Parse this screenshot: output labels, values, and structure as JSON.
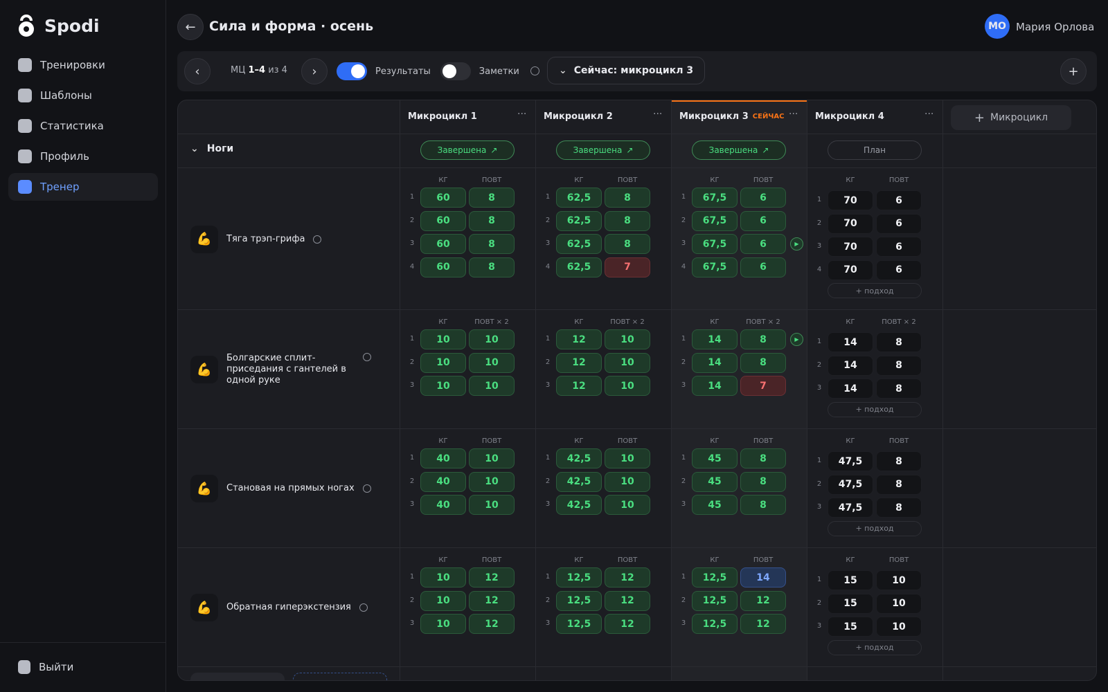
{
  "sidebar": {
    "brand": "Spodi",
    "nav": [
      "Тренировки",
      "Шаблоны",
      "Статистика",
      "Профиль",
      "Тренер"
    ],
    "logout": "Выйти"
  },
  "header": {
    "title": "Сила и форма · осень",
    "user_initials": "МО",
    "user_name": "Мария Орлова"
  },
  "toolbar": {
    "range_prefix": "МЦ",
    "range": "1–4",
    "range_suffix": "из 4",
    "toggles": [
      {
        "label": "Результаты",
        "on": true
      },
      {
        "label": "Заметки",
        "on": false
      }
    ],
    "current": "Сейчас: микроцикл 3"
  },
  "table": {
    "add_column": "Микроцикл",
    "group": "Ноги",
    "add_set": "+ подход",
    "columns": [
      {
        "name": "Микроцикл 1",
        "status": "Завершена",
        "planned": false
      },
      {
        "name": "Микроцикл 2",
        "status": "Завершена",
        "planned": false
      },
      {
        "name": "Микроцикл 3",
        "badge": "СЕЙЧАС",
        "status": "Завершена",
        "planned": false
      },
      {
        "name": "Микроцикл 4",
        "status": "План",
        "planned": true
      }
    ],
    "exercises": [
      {
        "name": "Тяга трэп-грифа",
        "col_kg": "КГ",
        "col_reps": "ПОВТ",
        "cycles": [
          {
            "sets": [
              [
                "60",
                "8"
              ],
              [
                "60",
                "8"
              ],
              [
                "60",
                "8"
              ],
              [
                "60",
                "8"
              ]
            ]
          },
          {
            "sets": [
              [
                "62,5",
                "8"
              ],
              [
                "62,5",
                "8"
              ],
              [
                "62,5",
                "8"
              ],
              [
                "62,5",
                "7"
              ]
            ],
            "missed": [
              [
                3,
                1
              ]
            ]
          },
          {
            "sets": [
              [
                "67,5",
                "6"
              ],
              [
                "67,5",
                "6"
              ],
              [
                "67,5",
                "6"
              ],
              [
                "67,5",
                "6"
              ]
            ],
            "active_set": 2
          },
          {
            "sets": [
              [
                "70",
                "6"
              ],
              [
                "70",
                "6"
              ],
              [
                "70",
                "6"
              ],
              [
                "70",
                "6"
              ]
            ]
          }
        ]
      },
      {
        "name": "Болгарские сплит-приседания с гантелей в одной руке",
        "col_kg": "КГ",
        "col_reps": "ПОВТ × 2",
        "cycles": [
          {
            "sets": [
              [
                "10",
                "10"
              ],
              [
                "10",
                "10"
              ],
              [
                "10",
                "10"
              ]
            ]
          },
          {
            "sets": [
              [
                "12",
                "10"
              ],
              [
                "12",
                "10"
              ],
              [
                "12",
                "10"
              ]
            ]
          },
          {
            "sets": [
              [
                "14",
                "8"
              ],
              [
                "14",
                "8"
              ],
              [
                "14",
                "7"
              ]
            ],
            "missed": [
              [
                2,
                1
              ]
            ],
            "active_set": 0
          },
          {
            "sets": [
              [
                "14",
                "8"
              ],
              [
                "14",
                "8"
              ],
              [
                "14",
                "8"
              ]
            ]
          }
        ]
      },
      {
        "name": "Становая на прямых ногах",
        "col_kg": "КГ",
        "col_reps": "ПОВТ",
        "cycles": [
          {
            "sets": [
              [
                "40",
                "10"
              ],
              [
                "40",
                "10"
              ],
              [
                "40",
                "10"
              ]
            ]
          },
          {
            "sets": [
              [
                "42,5",
                "10"
              ],
              [
                "42,5",
                "10"
              ],
              [
                "42,5",
                "10"
              ]
            ]
          },
          {
            "sets": [
              [
                "45",
                "8"
              ],
              [
                "45",
                "8"
              ],
              [
                "45",
                "8"
              ]
            ]
          },
          {
            "sets": [
              [
                "47,5",
                "8"
              ],
              [
                "47,5",
                "8"
              ],
              [
                "47,5",
                "8"
              ]
            ]
          }
        ]
      },
      {
        "name": "Обратная гиперэкстензия",
        "col_kg": "КГ",
        "col_reps": "ПОВТ",
        "cycles": [
          {
            "sets": [
              [
                "10",
                "12"
              ],
              [
                "10",
                "12"
              ],
              [
                "10",
                "12"
              ]
            ]
          },
          {
            "sets": [
              [
                "12,5",
                "12"
              ],
              [
                "12,5",
                "12"
              ],
              [
                "12,5",
                "12"
              ]
            ]
          },
          {
            "sets": [
              [
                "12,5",
                "14"
              ],
              [
                "12,5",
                "12"
              ],
              [
                "12,5",
                "12"
              ]
            ],
            "exceeded": [
              [
                0,
                1
              ]
            ]
          },
          {
            "sets": [
              [
                "15",
                "10"
              ],
              [
                "15",
                "10"
              ],
              [
                "15",
                "10"
              ]
            ]
          }
        ]
      }
    ]
  }
}
